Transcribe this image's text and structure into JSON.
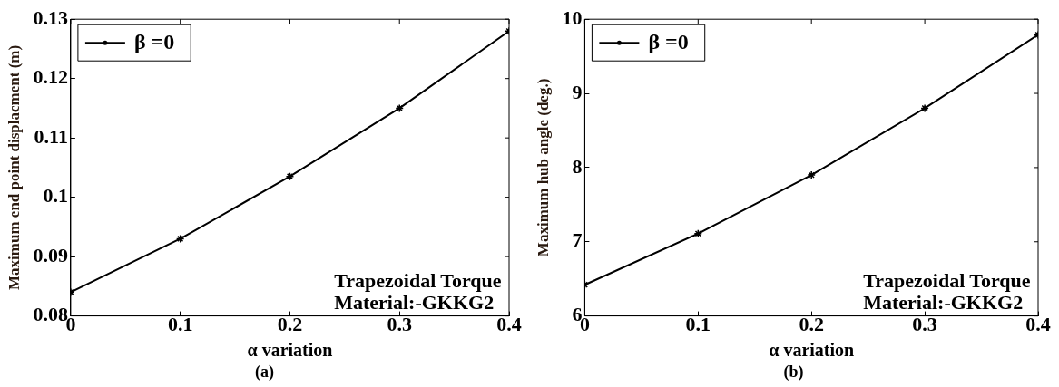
{
  "chart_data": [
    {
      "type": "line",
      "xlabel": "α variation",
      "ylabel": "Maximum end point displacment (m)",
      "x": [
        0,
        0.1,
        0.2,
        0.3,
        0.4
      ],
      "series": [
        {
          "name": "β =0",
          "color": "#000000",
          "values": [
            0.084,
            0.093,
            0.1035,
            0.115,
            0.128
          ]
        }
      ],
      "xlim": [
        0,
        0.4
      ],
      "xticks": [
        0,
        0.1,
        0.2,
        0.3,
        0.4
      ],
      "ylim": [
        0.08,
        0.13
      ],
      "yticks": [
        0.08,
        0.09,
        0.1,
        0.11,
        0.12,
        0.13
      ],
      "legend": "top left",
      "marker": "cross",
      "line_style": "solid",
      "annotations": [
        "Trapezoidal Torque",
        "Material:-GKKG2",
        "(a)"
      ]
    },
    {
      "type": "line",
      "xlabel": "α variation",
      "ylabel": "Maximum hub angle (deg.)",
      "x": [
        0,
        0.1,
        0.2,
        0.3,
        0.4
      ],
      "series": [
        {
          "name": "β =0",
          "color": "#000000",
          "values": [
            6.42,
            7.11,
            7.9,
            8.8,
            9.79
          ]
        }
      ],
      "xlim": [
        0,
        0.4
      ],
      "xticks": [
        0,
        0.1,
        0.2,
        0.3,
        0.4
      ],
      "ylim": [
        6,
        10
      ],
      "yticks": [
        6,
        7,
        8,
        9,
        10
      ],
      "legend": "top left",
      "marker": "cross",
      "line_style": "solid",
      "annotations": [
        "Trapezoidal Torque",
        "Material:-GKKG2",
        "(b)"
      ]
    }
  ]
}
